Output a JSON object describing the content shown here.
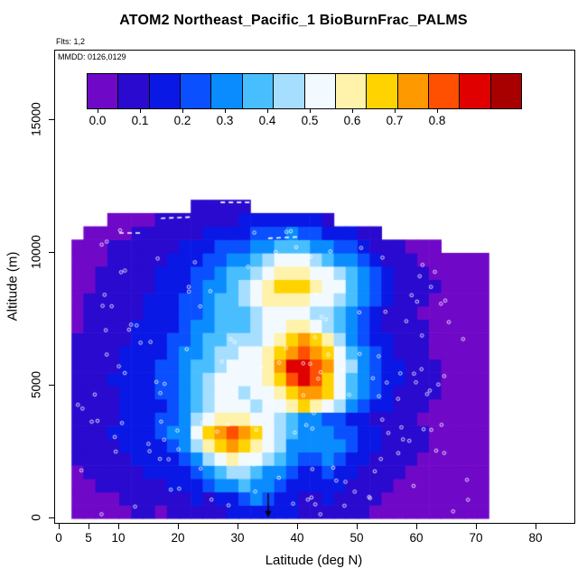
{
  "title": "ATOM2 Northeast_Pacific_1 BioBurnFrac_PALMS",
  "flights_label": "Flts: 1,2",
  "legend": {
    "mmdd_label": "MMDD: 0126,0129"
  },
  "axes": {
    "x": {
      "label": "Latitude (deg N)",
      "tick_values": [
        0,
        5,
        10,
        20,
        30,
        40,
        50,
        60,
        70,
        80
      ],
      "tick_labels": [
        "0",
        "5",
        "10",
        "20",
        "30",
        "40",
        "50",
        "60",
        "70",
        "80"
      ],
      "range": [
        0,
        87
      ]
    },
    "y": {
      "label": "Altitude (m)",
      "tick_values": [
        0,
        5000,
        10000,
        15000
      ],
      "tick_labels": [
        "0",
        "5000",
        "10000",
        "15000"
      ],
      "range": [
        0,
        17750
      ]
    }
  },
  "chart_data": {
    "type": "heatmap",
    "title": "ATOM2 Northeast_Pacific_1 BioBurnFrac_PALMS",
    "xlabel": "Latitude (deg N)",
    "ylabel": "Altitude (m)",
    "value_name": "BioBurnFrac",
    "colorbar": {
      "min": 0.0,
      "max": 1.0,
      "cells": [
        "#7008C8",
        "#2A0ACF",
        "#0A18E6",
        "#0A50FF",
        "#0A8CFF",
        "#49BEFF",
        "#A6DEFF",
        "#F2FAFF",
        "#FFF2AA",
        "#FFD300",
        "#FF9900",
        "#FF4F00",
        "#E00000",
        "#A80000"
      ],
      "tick_values": [
        0.0,
        0.1,
        0.2,
        0.3,
        0.4,
        0.5,
        0.6,
        0.7,
        0.8
      ],
      "tick_labels": [
        "0.0",
        "0.1",
        "0.2",
        "0.3",
        "0.4",
        "0.5",
        "0.6",
        "0.7",
        "0.8"
      ]
    },
    "grid": {
      "lat_start": 2,
      "lat_step": 2,
      "alt_start": 0,
      "alt_step": 500,
      "column_top_alt": [
        10500,
        11000,
        11000,
        11500,
        11500,
        11500,
        11500,
        11500,
        11500,
        11500,
        12000,
        12000,
        12000,
        12000,
        12000,
        11500,
        11500,
        11500,
        11500,
        11500,
        11500,
        11500,
        11000,
        11000,
        11000,
        11000,
        10500,
        10500,
        10500,
        10500,
        10500,
        10000,
        10000,
        10000,
        10000
      ],
      "values": [
        [
          0.05,
          0.05,
          0.05,
          0.06,
          0.05,
          0.08,
          0.08,
          0.07,
          0.08,
          0.1,
          0.12,
          0.12,
          0.1,
          0.15,
          0.15,
          0.15,
          0.2,
          0.18,
          0.15,
          0.12,
          0.12,
          0.1,
          0.1,
          0.1,
          0.08,
          0.06,
          0.06,
          0.05,
          0.06,
          0.05,
          0.05,
          0.05,
          0.05,
          0.05,
          0.05
        ],
        [
          0.06,
          0.05,
          0.07,
          0.06,
          0.08,
          0.1,
          0.08,
          0.1,
          0.12,
          0.12,
          0.15,
          0.12,
          0.15,
          0.2,
          0.25,
          0.3,
          0.25,
          0.2,
          0.15,
          0.12,
          0.12,
          0.15,
          0.12,
          0.1,
          0.08,
          0.08,
          0.06,
          0.06,
          0.05,
          0.06,
          0.05,
          0.06,
          0.05,
          0.05,
          0.05
        ],
        [
          0.05,
          0.06,
          0.08,
          0.08,
          0.1,
          0.12,
          0.1,
          0.12,
          0.15,
          0.18,
          0.2,
          0.25,
          0.3,
          0.35,
          0.4,
          0.35,
          0.3,
          0.25,
          0.2,
          0.15,
          0.15,
          0.2,
          0.15,
          0.12,
          0.1,
          0.08,
          0.08,
          0.06,
          0.06,
          0.06,
          0.05,
          0.05,
          0.06,
          0.05,
          0.05
        ],
        [
          0.06,
          0.08,
          0.1,
          0.1,
          0.12,
          0.12,
          0.15,
          0.15,
          0.18,
          0.2,
          0.25,
          0.3,
          0.4,
          0.45,
          0.45,
          0.4,
          0.35,
          0.3,
          0.25,
          0.2,
          0.2,
          0.25,
          0.2,
          0.15,
          0.12,
          0.1,
          0.08,
          0.08,
          0.06,
          0.06,
          0.06,
          0.05,
          0.05,
          0.06,
          0.05
        ],
        [
          0.08,
          0.08,
          0.1,
          0.12,
          0.12,
          0.15,
          0.15,
          0.18,
          0.2,
          0.25,
          0.3,
          0.45,
          0.55,
          0.6,
          0.55,
          0.5,
          0.45,
          0.4,
          0.3,
          0.25,
          0.25,
          0.3,
          0.25,
          0.2,
          0.15,
          0.12,
          0.1,
          0.08,
          0.08,
          0.06,
          0.06,
          0.06,
          0.05,
          0.05,
          0.05
        ],
        [
          0.08,
          0.1,
          0.12,
          0.12,
          0.15,
          0.15,
          0.18,
          0.2,
          0.25,
          0.3,
          0.45,
          0.6,
          0.7,
          0.75,
          0.7,
          0.6,
          0.5,
          0.45,
          0.35,
          0.3,
          0.3,
          0.35,
          0.3,
          0.25,
          0.18,
          0.15,
          0.12,
          0.1,
          0.08,
          0.08,
          0.06,
          0.06,
          0.06,
          0.05,
          0.05
        ],
        [
          0.1,
          0.1,
          0.12,
          0.15,
          0.15,
          0.18,
          0.2,
          0.25,
          0.3,
          0.35,
          0.5,
          0.65,
          0.78,
          0.8,
          0.75,
          0.65,
          0.55,
          0.45,
          0.4,
          0.35,
          0.3,
          0.3,
          0.28,
          0.22,
          0.18,
          0.15,
          0.12,
          0.1,
          0.08,
          0.08,
          0.06,
          0.06,
          0.05,
          0.06,
          0.05
        ],
        [
          0.08,
          0.1,
          0.12,
          0.12,
          0.15,
          0.18,
          0.2,
          0.22,
          0.28,
          0.32,
          0.45,
          0.55,
          0.6,
          0.62,
          0.58,
          0.55,
          0.5,
          0.45,
          0.4,
          0.35,
          0.3,
          0.28,
          0.25,
          0.2,
          0.15,
          0.12,
          0.1,
          0.1,
          0.08,
          0.06,
          0.06,
          0.05,
          0.06,
          0.05,
          0.05
        ],
        [
          0.08,
          0.1,
          0.1,
          0.12,
          0.15,
          0.15,
          0.18,
          0.2,
          0.25,
          0.3,
          0.4,
          0.45,
          0.5,
          0.52,
          0.5,
          0.48,
          0.5,
          0.55,
          0.6,
          0.65,
          0.62,
          0.55,
          0.45,
          0.35,
          0.25,
          0.2,
          0.15,
          0.12,
          0.1,
          0.08,
          0.06,
          0.06,
          0.05,
          0.05,
          0.05
        ],
        [
          0.1,
          0.1,
          0.12,
          0.12,
          0.15,
          0.18,
          0.2,
          0.22,
          0.25,
          0.3,
          0.38,
          0.45,
          0.5,
          0.5,
          0.48,
          0.5,
          0.55,
          0.62,
          0.7,
          0.78,
          0.75,
          0.65,
          0.5,
          0.4,
          0.3,
          0.22,
          0.18,
          0.14,
          0.1,
          0.08,
          0.08,
          0.06,
          0.06,
          0.05,
          0.05
        ],
        [
          0.1,
          0.12,
          0.12,
          0.15,
          0.15,
          0.18,
          0.2,
          0.25,
          0.28,
          0.32,
          0.4,
          0.45,
          0.5,
          0.52,
          0.5,
          0.52,
          0.6,
          0.7,
          0.8,
          0.88,
          0.82,
          0.7,
          0.55,
          0.42,
          0.32,
          0.25,
          0.2,
          0.15,
          0.12,
          0.1,
          0.08,
          0.06,
          0.06,
          0.06,
          0.05
        ],
        [
          0.08,
          0.1,
          0.12,
          0.12,
          0.15,
          0.18,
          0.2,
          0.22,
          0.28,
          0.3,
          0.38,
          0.42,
          0.48,
          0.5,
          0.52,
          0.55,
          0.62,
          0.72,
          0.88,
          0.88,
          0.82,
          0.72,
          0.55,
          0.45,
          0.32,
          0.25,
          0.18,
          0.15,
          0.1,
          0.08,
          0.08,
          0.06,
          0.06,
          0.05,
          0.05
        ],
        [
          0.08,
          0.1,
          0.1,
          0.12,
          0.15,
          0.15,
          0.18,
          0.2,
          0.25,
          0.3,
          0.35,
          0.4,
          0.45,
          0.48,
          0.5,
          0.52,
          0.6,
          0.68,
          0.75,
          0.8,
          0.75,
          0.65,
          0.5,
          0.4,
          0.3,
          0.22,
          0.18,
          0.12,
          0.1,
          0.08,
          0.06,
          0.06,
          0.05,
          0.05,
          0.05
        ],
        [
          0.08,
          0.08,
          0.1,
          0.12,
          0.12,
          0.15,
          0.18,
          0.2,
          0.22,
          0.28,
          0.32,
          0.38,
          0.42,
          0.45,
          0.45,
          0.48,
          0.55,
          0.62,
          0.7,
          0.72,
          0.68,
          0.58,
          0.45,
          0.35,
          0.28,
          0.2,
          0.15,
          0.12,
          0.1,
          0.08,
          0.06,
          0.05,
          0.06,
          0.05,
          0.05
        ],
        [
          0.06,
          0.08,
          0.1,
          0.1,
          0.12,
          0.15,
          0.15,
          0.18,
          0.2,
          0.25,
          0.3,
          0.35,
          0.4,
          0.42,
          0.42,
          0.45,
          0.5,
          0.55,
          0.58,
          0.58,
          0.55,
          0.48,
          0.4,
          0.32,
          0.25,
          0.18,
          0.14,
          0.1,
          0.08,
          0.08,
          0.06,
          0.06,
          0.05,
          0.05,
          0.05
        ],
        [
          0.06,
          0.08,
          0.08,
          0.1,
          0.12,
          0.12,
          0.15,
          0.18,
          0.2,
          0.22,
          0.28,
          0.32,
          0.38,
          0.4,
          0.42,
          0.45,
          0.5,
          0.52,
          0.52,
          0.5,
          0.48,
          0.45,
          0.38,
          0.3,
          0.22,
          0.18,
          0.12,
          0.1,
          0.08,
          0.06,
          0.06,
          0.05,
          0.05,
          0.05,
          0.05
        ],
        [
          0.06,
          0.08,
          0.08,
          0.1,
          0.1,
          0.12,
          0.15,
          0.15,
          0.18,
          0.22,
          0.28,
          0.32,
          0.38,
          0.42,
          0.45,
          0.5,
          0.58,
          0.62,
          0.6,
          0.58,
          0.55,
          0.5,
          0.45,
          0.38,
          0.3,
          0.22,
          0.15,
          0.12,
          0.1,
          0.08,
          0.06,
          0.06,
          0.05,
          0.05,
          0.05
        ],
        [
          0.06,
          0.06,
          0.08,
          0.08,
          0.1,
          0.12,
          0.12,
          0.15,
          0.18,
          0.2,
          0.25,
          0.3,
          0.35,
          0.4,
          0.45,
          0.52,
          0.6,
          0.65,
          0.68,
          0.65,
          0.6,
          0.55,
          0.5,
          0.42,
          0.32,
          0.25,
          0.18,
          0.12,
          0.1,
          0.08,
          0.08,
          0.06,
          0.06,
          0.05,
          0.05
        ],
        [
          0.05,
          0.06,
          0.08,
          0.08,
          0.1,
          0.1,
          0.12,
          0.15,
          0.15,
          0.18,
          0.22,
          0.28,
          0.32,
          0.38,
          0.42,
          0.48,
          0.55,
          0.6,
          0.62,
          0.6,
          0.55,
          0.5,
          0.45,
          0.38,
          0.3,
          0.22,
          0.15,
          0.12,
          0.08,
          0.08,
          0.06,
          0.06,
          0.05,
          0.05,
          0.05
        ],
        [
          0.05,
          0.06,
          0.06,
          0.08,
          0.08,
          0.1,
          0.12,
          0.12,
          0.15,
          0.18,
          0.2,
          0.25,
          0.28,
          0.32,
          0.35,
          0.4,
          0.45,
          0.5,
          0.52,
          0.5,
          0.45,
          0.4,
          0.35,
          0.3,
          0.25,
          0.18,
          0.12,
          0.1,
          0.08,
          0.06,
          0.06,
          0.05,
          0.05,
          0.05,
          0.05
        ],
        [
          0.05,
          0.05,
          0.06,
          0.08,
          0.08,
          0.08,
          0.1,
          0.12,
          0.12,
          0.15,
          0.18,
          0.2,
          0.22,
          0.25,
          0.28,
          0.3,
          0.35,
          0.4,
          0.42,
          0.4,
          0.35,
          0.3,
          0.28,
          0.22,
          0.18,
          0.14,
          0.1,
          0.08,
          0.06,
          0.06,
          0.05,
          null,
          null,
          null,
          null
        ],
        [
          null,
          0.05,
          0.05,
          0.06,
          0.06,
          0.08,
          0.08,
          0.1,
          0.1,
          0.12,
          0.12,
          0.15,
          0.15,
          0.18,
          0.2,
          0.22,
          0.25,
          0.28,
          0.3,
          0.28,
          0.25,
          0.2,
          0.18,
          0.15,
          0.12,
          0.1,
          null,
          null,
          null,
          null,
          null,
          null,
          null,
          null,
          null
        ],
        [
          null,
          null,
          null,
          0.05,
          0.05,
          0.06,
          0.06,
          0.08,
          0.08,
          0.1,
          0.1,
          0.12,
          0.12,
          0.12,
          0.15,
          0.15,
          0.18,
          0.2,
          0.2,
          0.18,
          0.15,
          0.12,
          null,
          null,
          null,
          null,
          null,
          null,
          null,
          null,
          null,
          null,
          null,
          null,
          null
        ],
        [
          null,
          null,
          null,
          null,
          null,
          null,
          null,
          null,
          null,
          null,
          0.08,
          0.08,
          0.1,
          0.1,
          0.08,
          null,
          null,
          null,
          null,
          null,
          null,
          null,
          null,
          null,
          null,
          null,
          null,
          null,
          null,
          null,
          null,
          null,
          null,
          null,
          null
        ]
      ]
    },
    "annotations": {
      "arrow_lat": 35,
      "marker_style": "white-open-circle",
      "marker_count": 150,
      "dashed_segments": [
        {
          "lat1": 10,
          "alt1": 10750,
          "lat2": 14,
          "alt2": 10750
        },
        {
          "lat1": 17,
          "alt1": 11300,
          "lat2": 22,
          "alt2": 11350
        },
        {
          "lat1": 27,
          "alt1": 11900,
          "lat2": 33,
          "alt2": 11900
        },
        {
          "lat1": 35,
          "alt1": 10550,
          "lat2": 40,
          "alt2": 10600
        }
      ]
    }
  }
}
